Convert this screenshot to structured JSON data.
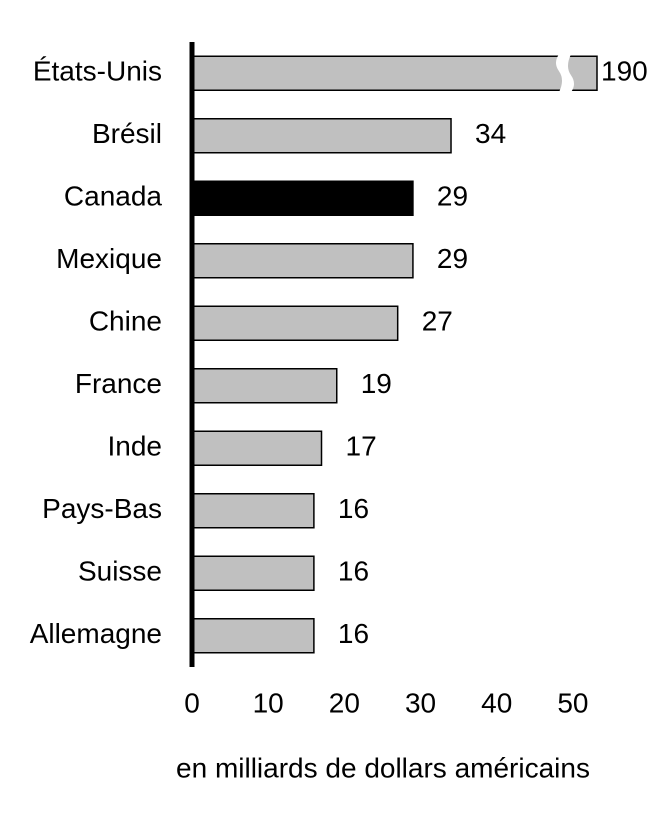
{
  "chart_data": {
    "type": "barh",
    "categories": [
      "États-Unis",
      "Brésil",
      "Canada",
      "Mexique",
      "Chine",
      "France",
      "Inde",
      "Pays-Bas",
      "Suisse",
      "Allemagne"
    ],
    "values": [
      190,
      34,
      29,
      29,
      27,
      19,
      17,
      16,
      16,
      16
    ],
    "colors": [
      "#c0c0c0",
      "#c0c0c0",
      "#000000",
      "#c0c0c0",
      "#c0c0c0",
      "#c0c0c0",
      "#c0c0c0",
      "#c0c0c0",
      "#c0c0c0",
      "#c0c0c0"
    ],
    "xlim": [
      0,
      55
    ],
    "xticks": [
      0,
      10,
      20,
      30,
      40,
      50
    ],
    "xlabel": "en milliards de dollars américains",
    "axis_break": true
  }
}
